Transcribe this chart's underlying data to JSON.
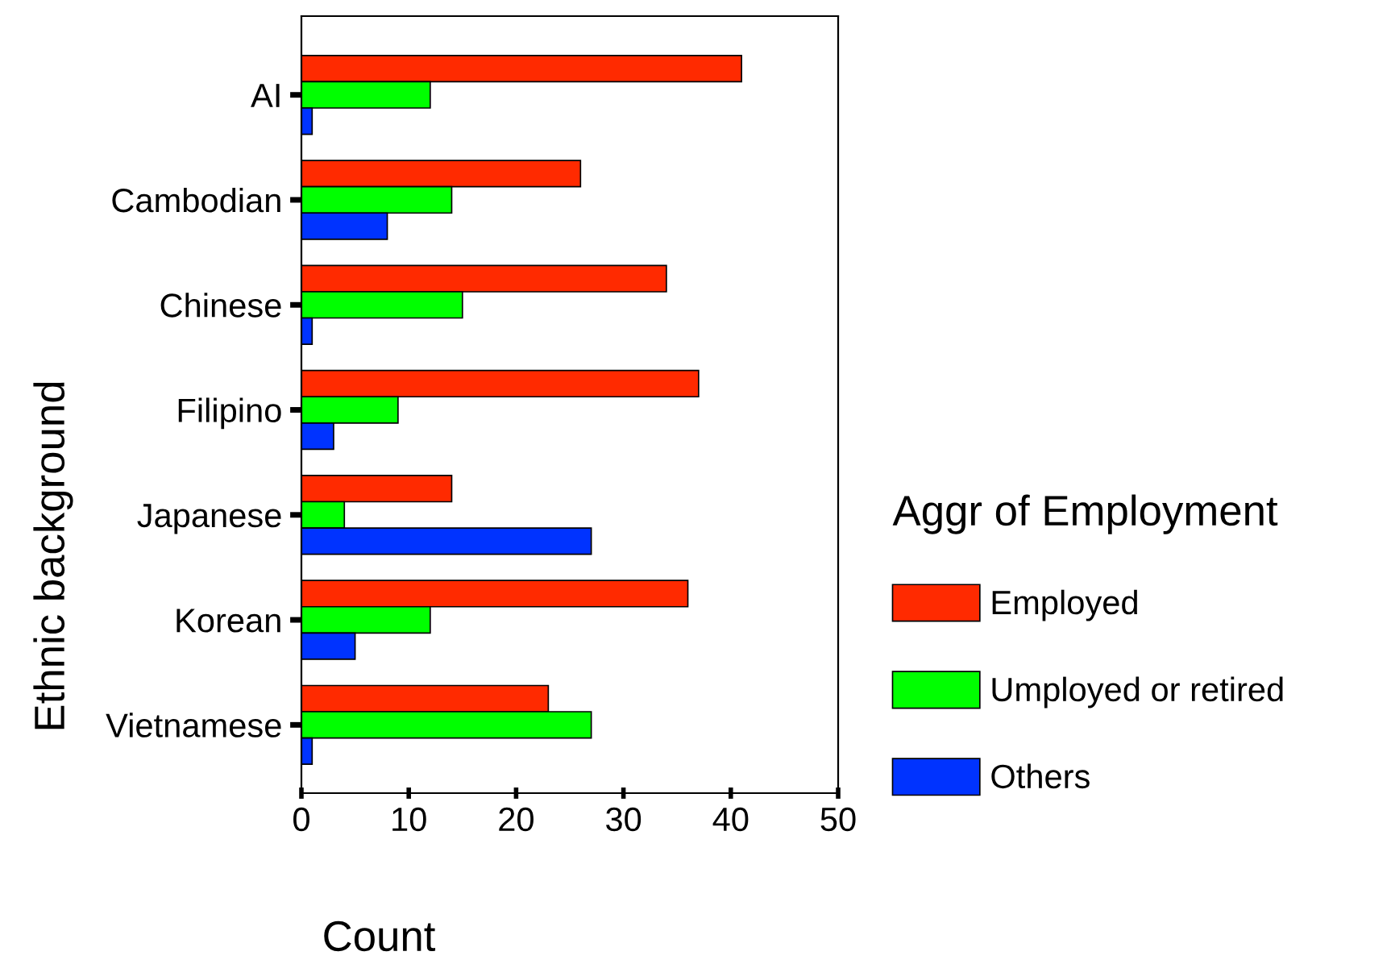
{
  "chart_data": {
    "type": "bar",
    "orientation": "horizontal",
    "xlabel": "Count",
    "ylabel": "Ethnic background",
    "legend_title": "Aggr of Employment",
    "legend": "right",
    "grid": false,
    "categories": [
      "AI",
      "Cambodian",
      "Chinese",
      "Filipino",
      "Japanese",
      "Korean",
      "Vietnamese"
    ],
    "series": [
      {
        "name": "Employed",
        "color": "#ff2a00",
        "values": [
          41,
          26,
          34,
          37,
          14,
          36,
          23
        ]
      },
      {
        "name": "Umployed or retired",
        "color": "#00ff00",
        "values": [
          12,
          14,
          15,
          9,
          4,
          12,
          27
        ]
      },
      {
        "name": "Others",
        "color": "#0033ff",
        "values": [
          1,
          8,
          1,
          3,
          27,
          5,
          1
        ]
      }
    ],
    "xlim": [
      0,
      50
    ],
    "xticks": [
      0,
      10,
      20,
      30,
      40,
      50
    ]
  }
}
